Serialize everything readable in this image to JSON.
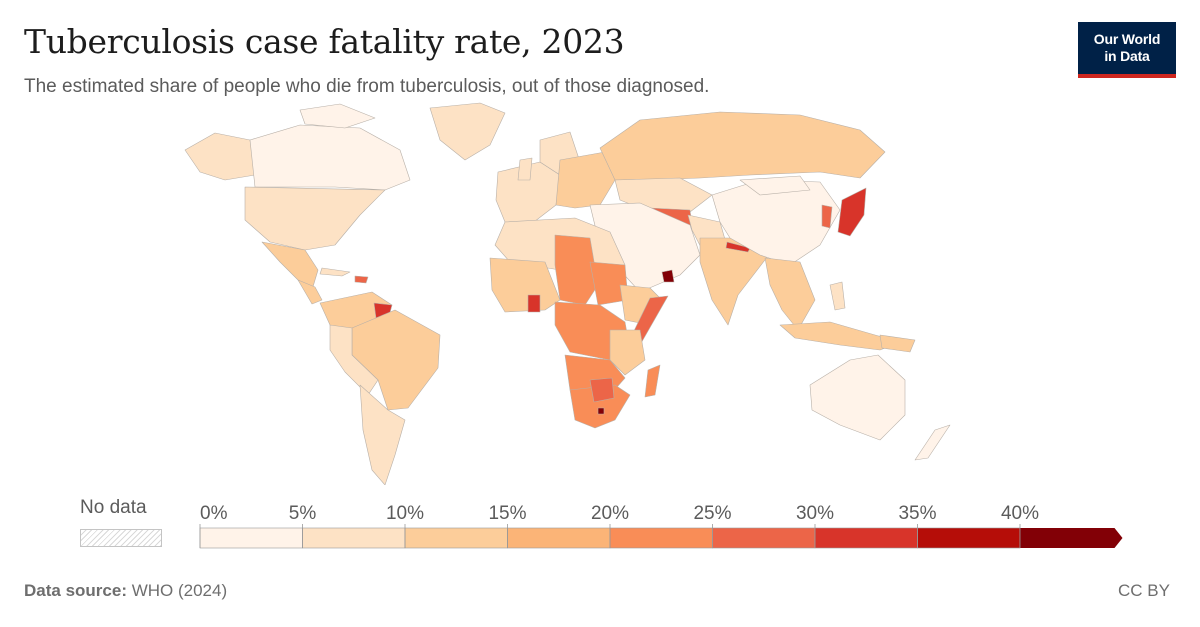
{
  "header": {
    "title": "Tuberculosis case fatality rate, 2023",
    "subtitle": "The estimated share of people who die from tuberculosis, out of those diagnosed."
  },
  "logo": {
    "line1": "Our World",
    "line2": "in Data"
  },
  "legend": {
    "no_data_label": "No data",
    "ticks": [
      "0%",
      "5%",
      "10%",
      "15%",
      "20%",
      "25%",
      "30%",
      "35%",
      "40%"
    ],
    "colors": [
      "#fff3e9",
      "#fde2c5",
      "#fccd9a",
      "#fbb477",
      "#f98d57",
      "#ec6548",
      "#d8342a",
      "#b50d08",
      "#820006"
    ]
  },
  "footer": {
    "source_label": "Data source:",
    "source_value": "WHO (2024)",
    "license": "CC BY"
  }
}
